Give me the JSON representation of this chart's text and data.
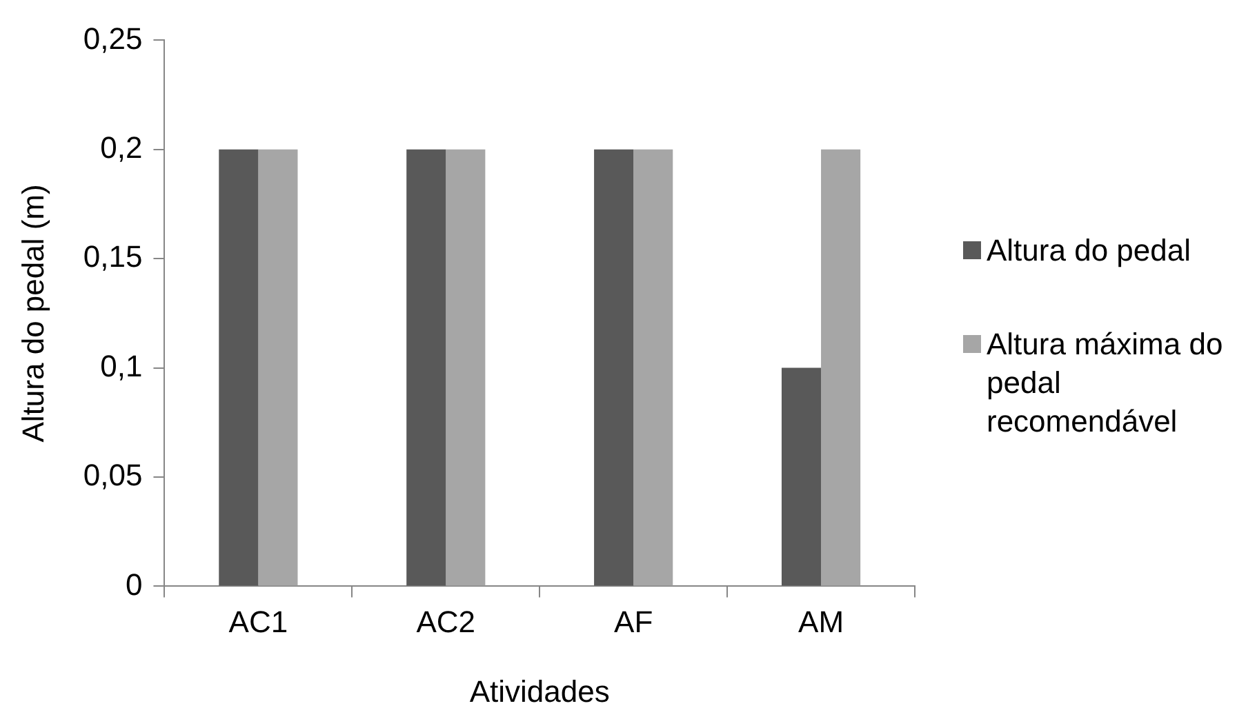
{
  "chart_data": {
    "type": "bar",
    "xlabel": "Atividades",
    "ylabel": "Altura do pedal (m)",
    "categories": [
      "AC1",
      "AC2",
      "AF",
      "AM"
    ],
    "series": [
      {
        "name": "Altura do pedal",
        "color": "#595959",
        "values": [
          0.2,
          0.2,
          0.2,
          0.1
        ]
      },
      {
        "name": "Altura máxima do pedal recomendável",
        "color": "#a6a6a6",
        "values": [
          0.2,
          0.2,
          0.2,
          0.2
        ]
      }
    ],
    "ylim": [
      0,
      0.25
    ],
    "yticks": [
      {
        "value": 0,
        "label": "0"
      },
      {
        "value": 0.05,
        "label": "0,05"
      },
      {
        "value": 0.1,
        "label": "0,1"
      },
      {
        "value": 0.15,
        "label": "0,15"
      },
      {
        "value": 0.2,
        "label": "0,2"
      },
      {
        "value": 0.25,
        "label": "0,25"
      }
    ],
    "grid": false,
    "legend": "right"
  }
}
